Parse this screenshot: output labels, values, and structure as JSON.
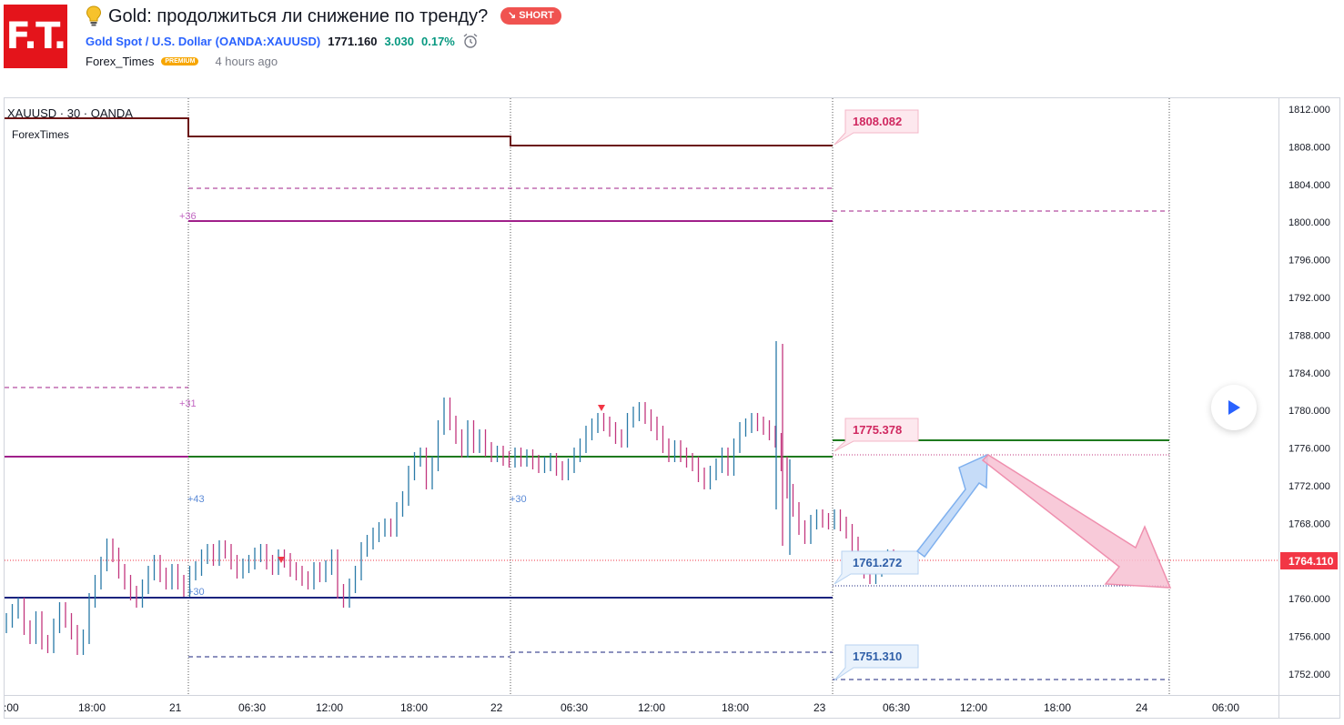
{
  "header": {
    "logo_text": "F.T.",
    "title": "Gold: продолжиться ли снижение по тренду?",
    "badge": "↘ SHORT",
    "symbol_name": "Gold Spot / U.S. Dollar",
    "symbol_ticker": "(OANDA:XAUUSD)",
    "price": "1771.160",
    "change": "3.030",
    "change_pct": "0.17%",
    "author": "Forex_Times",
    "author_badge": "PREMIUM",
    "time_ago": "4 hours ago"
  },
  "chart": {
    "legend_symbol": "XAUUSD · 30 · OANDA",
    "legend_indicator": "ForexTimes",
    "y_ticks": [
      "1812.000",
      "1808.000",
      "1804.000",
      "1800.000",
      "1796.000",
      "1792.000",
      "1788.000",
      "1784.000",
      "1780.000",
      "1776.000",
      "1772.000",
      "1768.000",
      "1764.000",
      "1760.000",
      "1756.000",
      "1752.000"
    ],
    "x_ticks": [
      ":00",
      "18:00",
      "21",
      "06:30",
      "12:00",
      "18:00",
      "22",
      "06:30",
      "12:00",
      "18:00",
      "23",
      "06:30",
      "12:00",
      "18:00",
      "24",
      "06:00"
    ],
    "current_price": "1764.110",
    "level_labels": {
      "upper": "1808.082",
      "middle": "1775.378",
      "current": "1761.272",
      "lower": "1751.310"
    },
    "small_labels": [
      "+36",
      "+31",
      "+43",
      "+30",
      "+30"
    ],
    "colors": {
      "up": "#2a7aa8",
      "down": "#c2377e",
      "upper_level": "#6b1414",
      "magenta": "#a0208a",
      "green": "#1f7a1f",
      "navy": "#1a237e",
      "price_badge": "#f23645"
    }
  }
}
